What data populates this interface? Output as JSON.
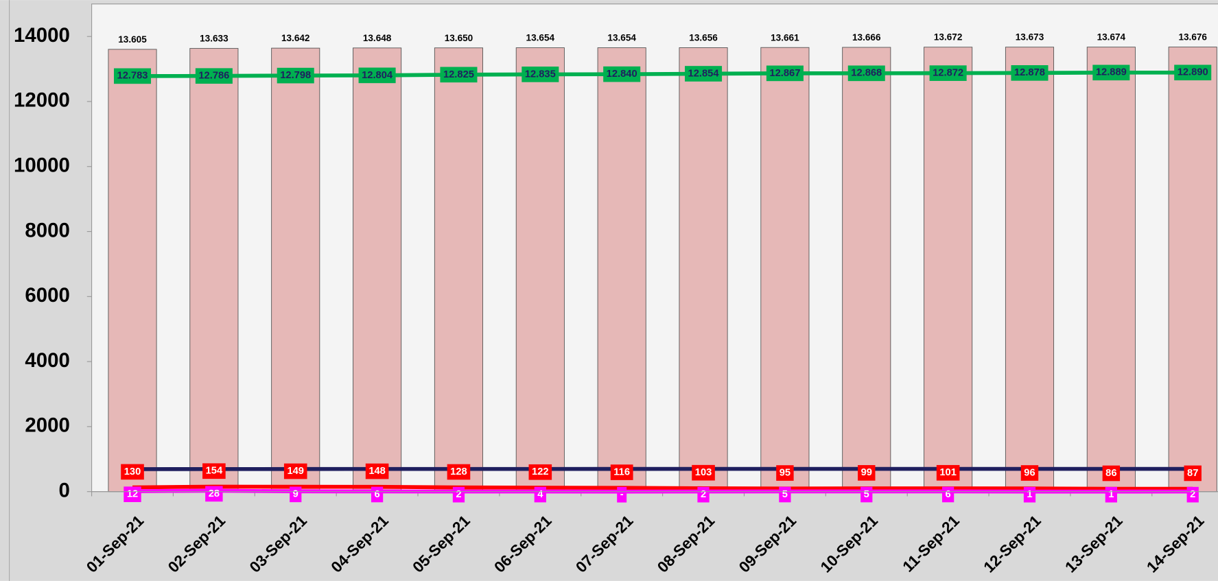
{
  "chart_data": {
    "type": "bar",
    "categories": [
      "01-Sep-21",
      "02-Sep-21",
      "03-Sep-21",
      "04-Sep-21",
      "05-Sep-21",
      "06-Sep-21",
      "07-Sep-21",
      "08-Sep-21",
      "09-Sep-21",
      "10-Sep-21",
      "11-Sep-21",
      "12-Sep-21",
      "13-Sep-21",
      "14-Sep-21"
    ],
    "ylim": [
      0,
      15000
    ],
    "yticks": [
      0,
      2000,
      4000,
      6000,
      8000,
      10000,
      12000,
      14000
    ],
    "series": [
      {
        "type": "bar",
        "color": "#e6b8b7",
        "values": [
          13605,
          13633,
          13642,
          13648,
          13650,
          13654,
          13654,
          13656,
          13661,
          13666,
          13672,
          13673,
          13674,
          13676
        ],
        "value_labels": [
          "13.605",
          "13.633",
          "13.642",
          "13.648",
          "13.650",
          "13.654",
          "13.654",
          "13.656",
          "13.661",
          "13.666",
          "13.672",
          "13.673",
          "13.674",
          "13.676"
        ]
      },
      {
        "type": "line",
        "color": "#00b050",
        "values": [
          12783,
          12786,
          12798,
          12804,
          12825,
          12835,
          12840,
          12854,
          12867,
          12868,
          12872,
          12878,
          12889,
          12890
        ],
        "value_labels": [
          "12.783",
          "12.786",
          "12.798",
          "12.804",
          "12.825",
          "12.835",
          "12.840",
          "12.854",
          "12.867",
          "12.868",
          "12.872",
          "12.878",
          "12.889",
          "12.890"
        ]
      },
      {
        "type": "line",
        "color": "#1f1f5f",
        "values": [
          692,
          693,
          695,
          696,
          697,
          697,
          698,
          699,
          699,
          699,
          699,
          699,
          699,
          699
        ]
      },
      {
        "type": "line",
        "color": "#ff0000",
        "values": [
          130,
          154,
          149,
          148,
          128,
          122,
          116,
          103,
          95,
          99,
          101,
          96,
          86,
          87
        ]
      },
      {
        "type": "line",
        "color": "#ff00ff",
        "values": [
          12,
          28,
          9,
          6,
          2,
          4,
          0,
          2,
          5,
          5,
          6,
          1,
          1,
          2
        ],
        "value_labels": [
          "12",
          "28",
          "9",
          "6",
          "2",
          "4",
          "-",
          "2",
          "5",
          "5",
          "6",
          "1",
          "1",
          "2"
        ]
      }
    ]
  }
}
